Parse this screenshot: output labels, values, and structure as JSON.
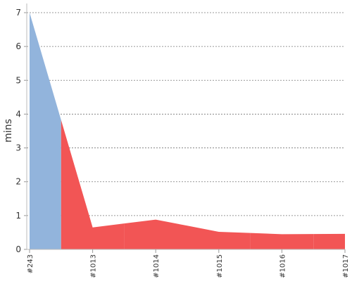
{
  "chart_data": {
    "type": "area",
    "y_label": "mins",
    "categories": [
      "#243",
      "#1013",
      "#1014",
      "#1015",
      "#1016",
      "#1017"
    ],
    "values": [
      7.0,
      0.65,
      0.88,
      0.52,
      0.45,
      0.46
    ],
    "colors": [
      "#92b4dc",
      "#f25555",
      "#f25555",
      "#f25555",
      "#f25555",
      "#f25555"
    ],
    "ylim": [
      0,
      7
    ],
    "yticks": [
      0,
      1,
      2,
      3,
      4,
      5,
      6,
      7
    ],
    "grid": true
  }
}
